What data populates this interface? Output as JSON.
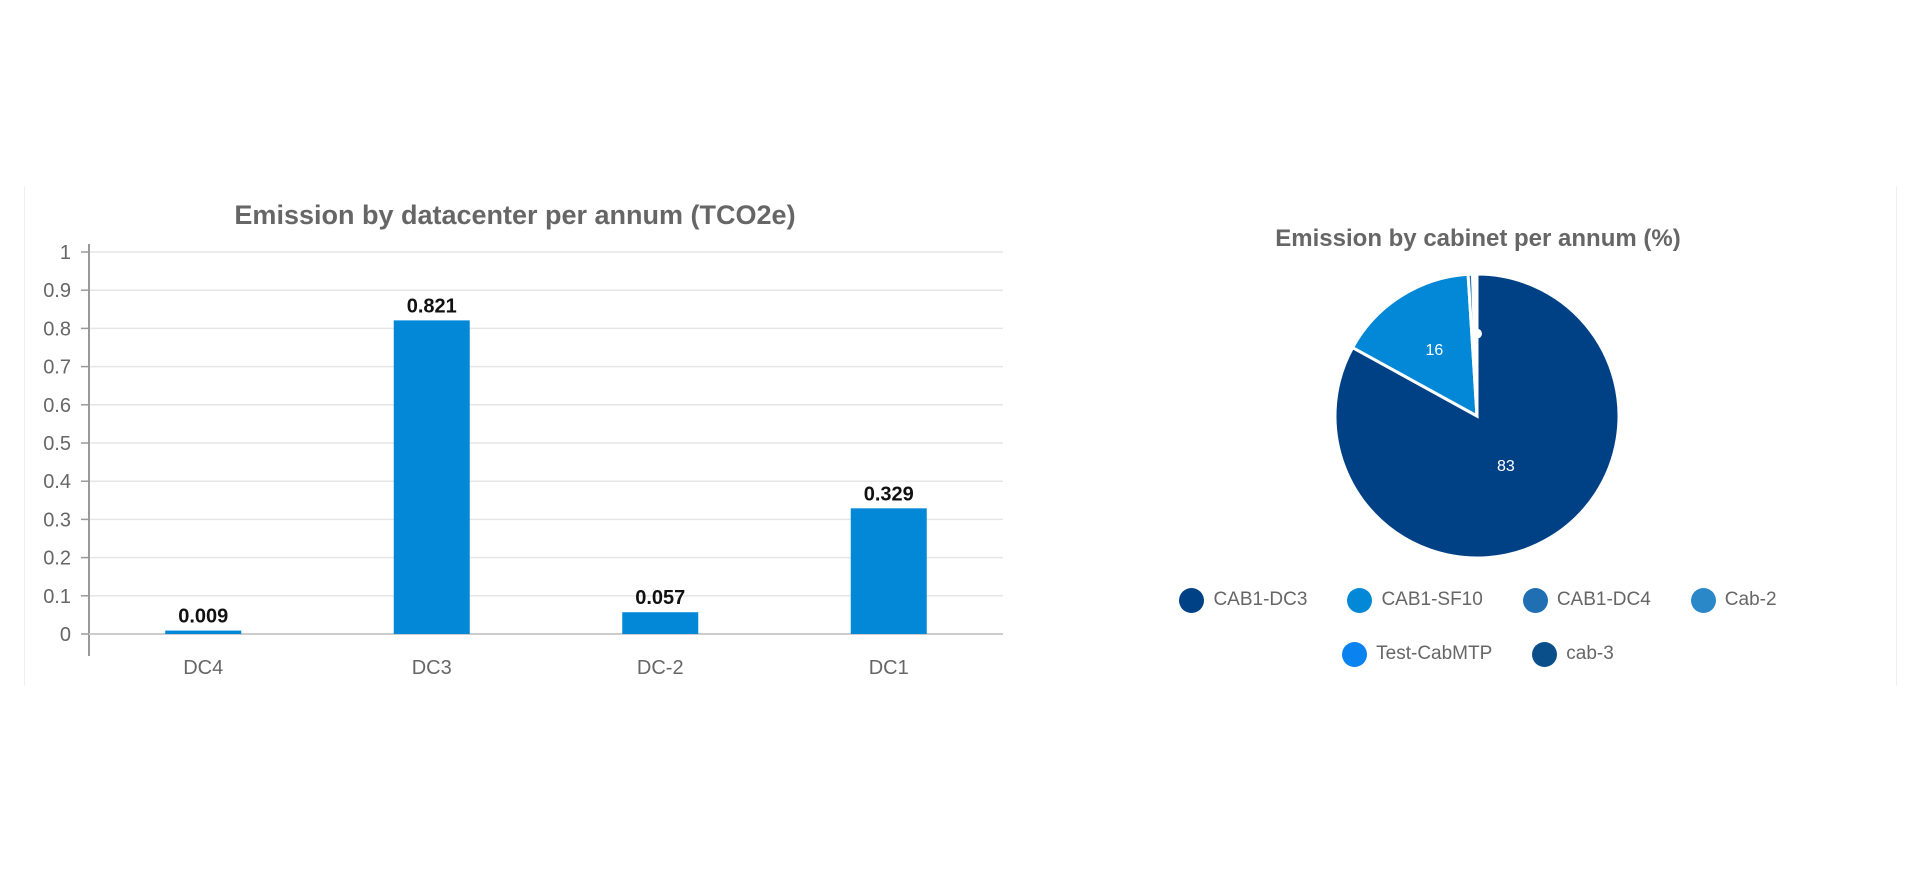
{
  "chart_data": [
    {
      "type": "bar",
      "title": "Emission by datacenter per annum (TCO2e)",
      "categories": [
        "DC4",
        "DC3",
        "DC-2",
        "DC1"
      ],
      "values": [
        0.009,
        0.821,
        0.057,
        0.329
      ],
      "data_labels": [
        "0.009",
        "0.821",
        "0.057",
        "0.329"
      ],
      "ylim": [
        0,
        1
      ],
      "yticks": [
        "0",
        "0.1",
        "0.2",
        "0.3",
        "0.4",
        "0.5",
        "0.6",
        "0.7",
        "0.8",
        "0.9",
        "1"
      ],
      "grid": true,
      "bar_color": "#0288d6"
    },
    {
      "type": "pie",
      "title": "Emission by cabinet per annum (%)",
      "slices": [
        {
          "label": "CAB1-DC3",
          "value": 83,
          "color": "#004185"
        },
        {
          "label": "CAB1-SF10",
          "value": 16,
          "color": "#0288d6"
        },
        {
          "label": "CAB1-DC4",
          "value": 0.5,
          "color": "#1f6fb2"
        },
        {
          "label": "Cab-2",
          "value": 0.3,
          "color": "#2b88c8"
        },
        {
          "label": "Test-CabMTP",
          "value": 0.1,
          "color": "#0a82f0"
        },
        {
          "label": "cab-3",
          "value": 0.1,
          "color": "#0b4f8a"
        }
      ],
      "data_labels": [
        "83",
        "16"
      ],
      "legend": [
        "CAB1-DC3",
        "CAB1-SF10",
        "CAB1-DC4",
        "Cab-2",
        "Test-CabMTP",
        "cab-3"
      ],
      "legend_placement": "bottom"
    }
  ]
}
